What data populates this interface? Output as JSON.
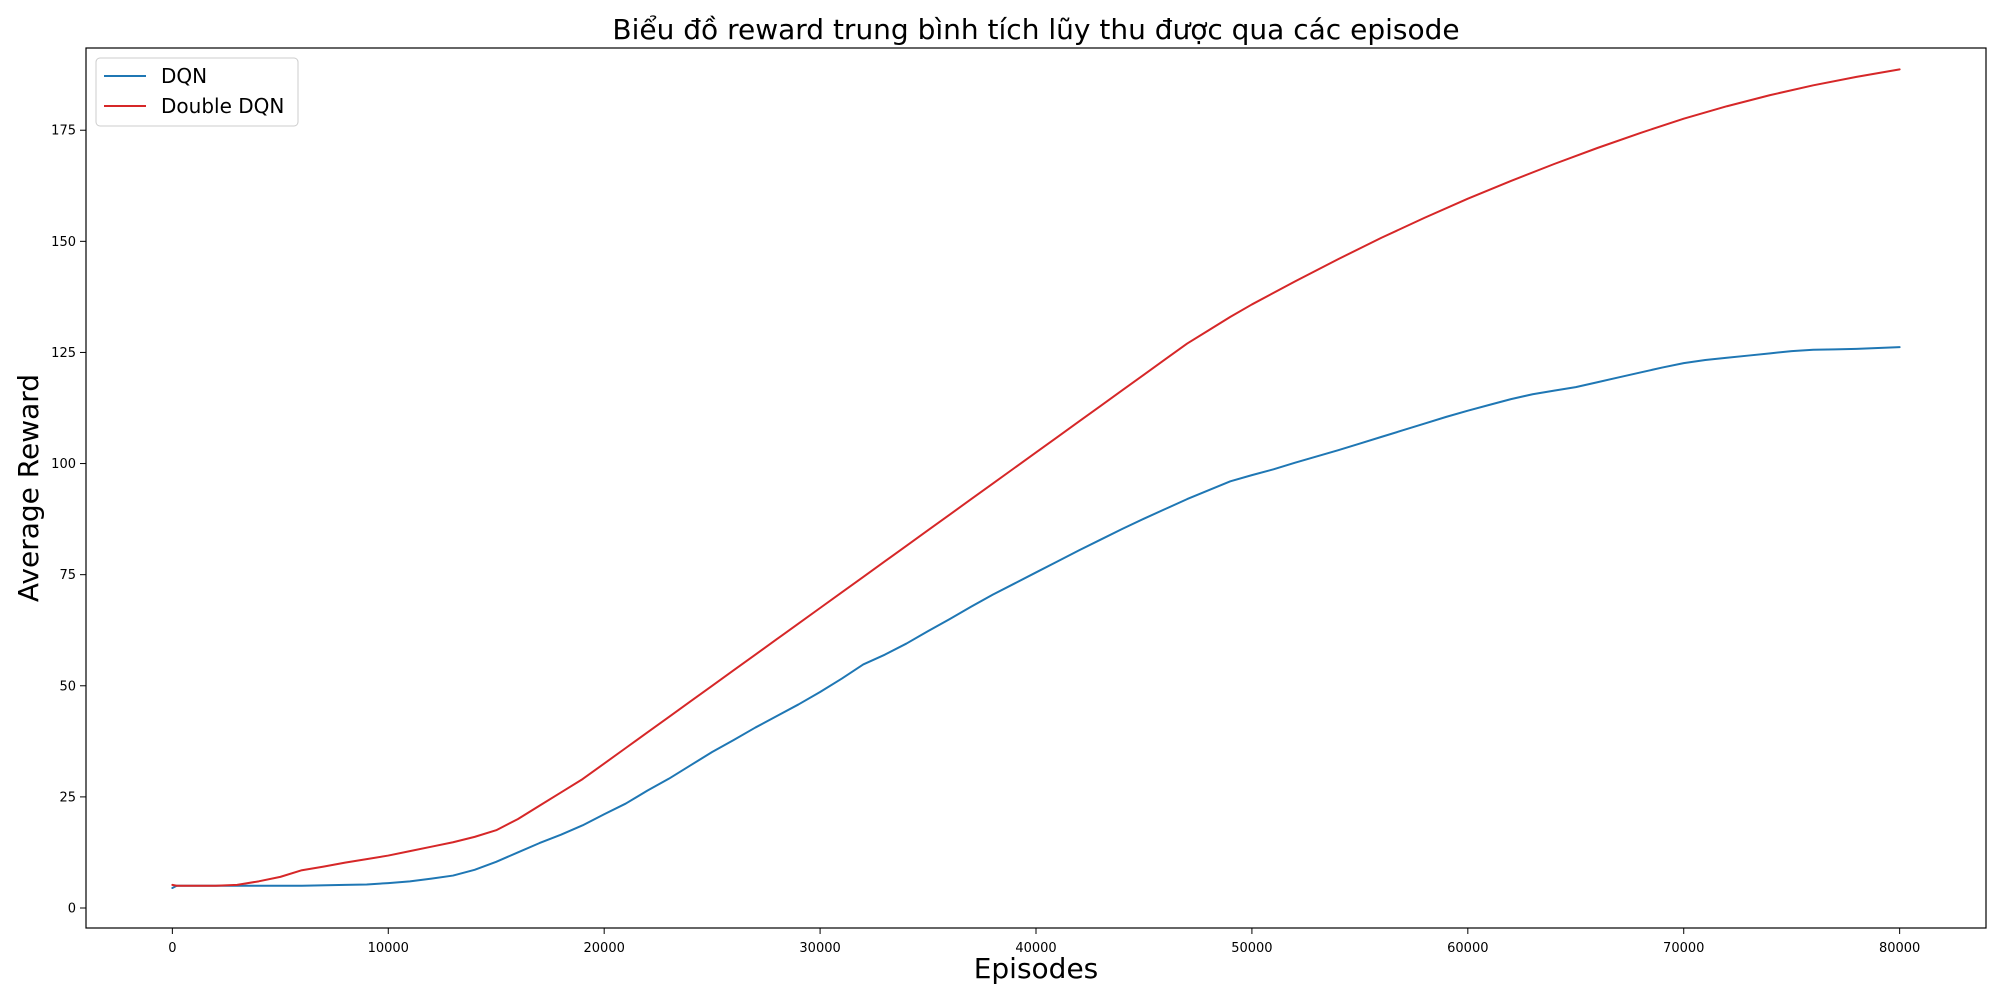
{
  "chart_data": {
    "type": "line",
    "title": "Biểu đồ reward trung bình tích lũy thu được qua các episode",
    "xlabel": "Episodes",
    "ylabel": "Average Reward",
    "xlim": [
      -4000,
      84000
    ],
    "ylim": [
      -4.5,
      193.5
    ],
    "x_ticks": [
      0,
      10000,
      20000,
      30000,
      40000,
      50000,
      60000,
      70000,
      80000
    ],
    "y_ticks": [
      0,
      25,
      50,
      75,
      100,
      125,
      150,
      175
    ],
    "grid": false,
    "legend_position": "top-left",
    "tick_colors": {
      "x": "#000000",
      "y": "#ff7f0e"
    },
    "series": [
      {
        "name": "DQN",
        "color": "#1f77b4",
        "points": [
          [
            0,
            4.5
          ],
          [
            200,
            5.0
          ],
          [
            2000,
            5.0
          ],
          [
            4000,
            5.0
          ],
          [
            6000,
            5.0
          ],
          [
            8000,
            5.2
          ],
          [
            9000,
            5.3
          ],
          [
            10000,
            5.6
          ],
          [
            11000,
            6.0
          ],
          [
            12000,
            6.6
          ],
          [
            13000,
            7.3
          ],
          [
            14000,
            8.6
          ],
          [
            15000,
            10.4
          ],
          [
            16000,
            12.5
          ],
          [
            17000,
            14.6
          ],
          [
            18000,
            16.5
          ],
          [
            19000,
            18.6
          ],
          [
            20000,
            21.1
          ],
          [
            21000,
            23.5
          ],
          [
            22000,
            26.4
          ],
          [
            23000,
            29.1
          ],
          [
            24000,
            32.1
          ],
          [
            25000,
            35.1
          ],
          [
            26000,
            37.8
          ],
          [
            27000,
            40.6
          ],
          [
            28000,
            43.2
          ],
          [
            29000,
            45.8
          ],
          [
            30000,
            48.6
          ],
          [
            31000,
            51.6
          ],
          [
            32000,
            54.8
          ],
          [
            33000,
            57.0
          ],
          [
            34000,
            59.5
          ],
          [
            35000,
            62.3
          ],
          [
            36000,
            65.0
          ],
          [
            37000,
            67.8
          ],
          [
            38000,
            70.5
          ],
          [
            39000,
            73.0
          ],
          [
            40000,
            75.5
          ],
          [
            41000,
            78.0
          ],
          [
            42000,
            80.5
          ],
          [
            43000,
            82.9
          ],
          [
            44000,
            85.3
          ],
          [
            45000,
            87.6
          ],
          [
            46000,
            89.8
          ],
          [
            47000,
            92.0
          ],
          [
            48000,
            94.0
          ],
          [
            49000,
            96.0
          ],
          [
            50000,
            97.4
          ],
          [
            51000,
            98.7
          ],
          [
            52000,
            100.2
          ],
          [
            53000,
            101.6
          ],
          [
            54000,
            103.0
          ],
          [
            55000,
            104.5
          ],
          [
            56000,
            106.0
          ],
          [
            57000,
            107.5
          ],
          [
            58000,
            109.0
          ],
          [
            59000,
            110.5
          ],
          [
            60000,
            111.9
          ],
          [
            61000,
            113.2
          ],
          [
            62000,
            114.5
          ],
          [
            63000,
            115.6
          ],
          [
            64000,
            116.4
          ],
          [
            65000,
            117.2
          ],
          [
            66000,
            118.3
          ],
          [
            67000,
            119.4
          ],
          [
            68000,
            120.5
          ],
          [
            69000,
            121.6
          ],
          [
            70000,
            122.6
          ],
          [
            71000,
            123.3
          ],
          [
            72000,
            123.8
          ],
          [
            73000,
            124.3
          ],
          [
            74000,
            124.8
          ],
          [
            75000,
            125.3
          ],
          [
            76000,
            125.6
          ],
          [
            77000,
            125.7
          ],
          [
            78000,
            125.8
          ],
          [
            79000,
            126.0
          ],
          [
            80000,
            126.2
          ]
        ]
      },
      {
        "name": "Double DQN",
        "color": "#d62728",
        "points": [
          [
            0,
            5.2
          ],
          [
            200,
            5.0
          ],
          [
            2000,
            5.0
          ],
          [
            3000,
            5.2
          ],
          [
            4000,
            6.0
          ],
          [
            5000,
            7.0
          ],
          [
            6000,
            8.5
          ],
          [
            7000,
            9.3
          ],
          [
            8000,
            10.2
          ],
          [
            9000,
            11.0
          ],
          [
            10000,
            11.8
          ],
          [
            11000,
            12.8
          ],
          [
            12000,
            13.8
          ],
          [
            13000,
            14.8
          ],
          [
            14000,
            16.0
          ],
          [
            15000,
            17.5
          ],
          [
            16000,
            20.0
          ],
          [
            17000,
            23.0
          ],
          [
            18000,
            26.0
          ],
          [
            19000,
            29.0
          ],
          [
            20000,
            32.5
          ],
          [
            21000,
            36.0
          ],
          [
            22000,
            39.5
          ],
          [
            23000,
            43.0
          ],
          [
            24000,
            46.5
          ],
          [
            25000,
            50.0
          ],
          [
            26000,
            53.5
          ],
          [
            27000,
            57.0
          ],
          [
            28000,
            60.5
          ],
          [
            29000,
            64.0
          ],
          [
            30000,
            67.5
          ],
          [
            31000,
            71.0
          ],
          [
            32000,
            74.5
          ],
          [
            33000,
            78.0
          ],
          [
            34000,
            81.5
          ],
          [
            35000,
            85.0
          ],
          [
            36000,
            88.5
          ],
          [
            37000,
            92.0
          ],
          [
            38000,
            95.5
          ],
          [
            39000,
            99.0
          ],
          [
            40000,
            102.5
          ],
          [
            41000,
            106.0
          ],
          [
            42000,
            109.5
          ],
          [
            43000,
            113.0
          ],
          [
            44000,
            116.5
          ],
          [
            45000,
            120.0
          ],
          [
            46000,
            123.5
          ],
          [
            47000,
            127.0
          ],
          [
            48000,
            130.0
          ],
          [
            49000,
            133.0
          ],
          [
            50000,
            135.8
          ],
          [
            52000,
            141.0
          ],
          [
            54000,
            146.0
          ],
          [
            56000,
            150.8
          ],
          [
            58000,
            155.3
          ],
          [
            60000,
            159.6
          ],
          [
            62000,
            163.6
          ],
          [
            64000,
            167.4
          ],
          [
            66000,
            171.0
          ],
          [
            68000,
            174.4
          ],
          [
            70000,
            177.6
          ],
          [
            72000,
            180.4
          ],
          [
            74000,
            182.9
          ],
          [
            76000,
            185.1
          ],
          [
            78000,
            187.0
          ],
          [
            80000,
            188.7
          ]
        ]
      }
    ]
  }
}
